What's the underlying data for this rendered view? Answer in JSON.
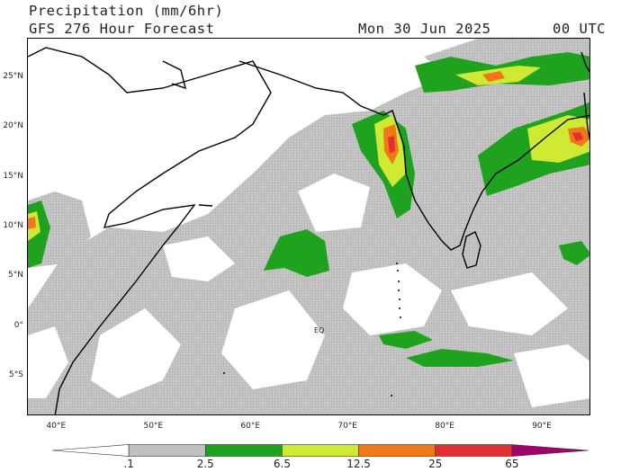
{
  "header": {
    "title": "Precipitation (mm/6hr)",
    "subtitle": "GFS 276 Hour Forecast",
    "valid_date": "Mon 30 Jun 2025",
    "valid_time": "00 UTC"
  },
  "map": {
    "lat_labels": [
      "25°N",
      "20°N",
      "15°N",
      "10°N",
      "5°N",
      "0°",
      "5°S"
    ],
    "lon_labels": [
      "40°E",
      "50°E",
      "60°E",
      "70°E",
      "80°E",
      "90°E"
    ],
    "equator_label": "EQ",
    "extent": {
      "lon_min": 37,
      "lon_max": 95,
      "lat_min": -9,
      "lat_max": 29
    }
  },
  "legend": {
    "levels": [
      ".1",
      "2.5",
      "6.5",
      "12.5",
      "25",
      "65"
    ],
    "colors": [
      "#ffffff",
      "#c0c0c0",
      "#1fa31f",
      "#cfe832",
      "#f07818",
      "#e03030",
      "#a0006a"
    ]
  }
}
